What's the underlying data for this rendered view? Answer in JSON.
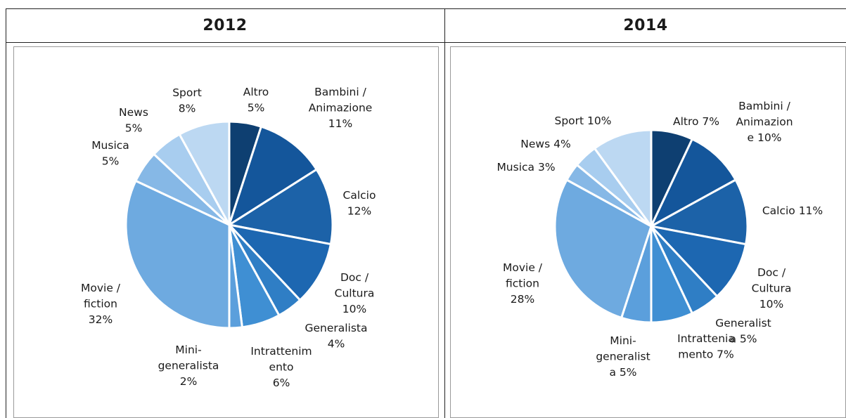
{
  "panels": [
    {
      "title": "2012"
    },
    {
      "title": "2014"
    }
  ],
  "chart_data": [
    {
      "type": "pie",
      "title": "2012",
      "colors": [
        "#0e3f71",
        "#14569b",
        "#1c62a8",
        "#1d67b1",
        "#2f7ec5",
        "#3f8fd3",
        "#5b9fdc",
        "#6eaae0",
        "#86b8e6",
        "#a8cdef",
        "#bcd8f2",
        "#cfe3f6"
      ],
      "slices": [
        {
          "label": "Altro",
          "value": 5,
          "label_lines": [
            "Altro",
            "5%"
          ]
        },
        {
          "label": "Bambini / Animazione",
          "value": 11,
          "label_lines": [
            "Bambini /",
            "Animazione",
            "11%"
          ]
        },
        {
          "label": "Calcio",
          "value": 12,
          "label_lines": [
            "Calcio",
            "12%"
          ]
        },
        {
          "label": "Doc / Cultura",
          "value": 10,
          "label_lines": [
            "Doc /",
            "Cultura",
            "10%"
          ]
        },
        {
          "label": "Generalista",
          "value": 4,
          "label_lines": [
            "Generalista",
            "4%"
          ]
        },
        {
          "label": "Intrattenimento",
          "value": 6,
          "label_lines": [
            "Intrattenim",
            "ento",
            "6%"
          ]
        },
        {
          "label": "Mini-generalista",
          "value": 2,
          "label_lines": [
            "Mini-",
            "generalista",
            "2%"
          ]
        },
        {
          "label": "Movie / fiction",
          "value": 32,
          "label_lines": [
            "Movie /",
            "fiction",
            "32%"
          ]
        },
        {
          "label": "Musica",
          "value": 5,
          "label_lines": [
            "Musica",
            "5%"
          ]
        },
        {
          "label": "News",
          "value": 5,
          "label_lines": [
            "News",
            "5%"
          ]
        },
        {
          "label": "Sport",
          "value": 8,
          "label_lines": [
            "Sport",
            "8%"
          ]
        }
      ]
    },
    {
      "type": "pie",
      "title": "2014",
      "colors": [
        "#0e3f71",
        "#14569b",
        "#1c62a8",
        "#1d67b1",
        "#2f7ec5",
        "#3f8fd3",
        "#5b9fdc",
        "#6eaae0",
        "#86b8e6",
        "#a8cdef",
        "#bcd8f2",
        "#cfe3f6"
      ],
      "slices": [
        {
          "label": "Altro",
          "value": 7,
          "label_lines": [
            "Altro 7%"
          ]
        },
        {
          "label": "Bambini / Animazione",
          "value": 10,
          "label_lines": [
            "Bambini /",
            "Animazion",
            "e 10%"
          ]
        },
        {
          "label": "Calcio",
          "value": 11,
          "label_lines": [
            "Calcio 11%"
          ]
        },
        {
          "label": "Doc / Cultura",
          "value": 10,
          "label_lines": [
            "Doc /",
            "Cultura",
            "10%"
          ]
        },
        {
          "label": "Generalista",
          "value": 5,
          "label_lines": [
            "Generalist",
            "a 5%"
          ]
        },
        {
          "label": "Intrattenimento",
          "value": 7,
          "label_lines": [
            "Intrattenia",
            "mento 7%"
          ]
        },
        {
          "label": "Mini-generalista",
          "value": 5,
          "label_lines": [
            "Mini-",
            "generalist",
            "a 5%"
          ]
        },
        {
          "label": "Movie / fiction",
          "value": 28,
          "label_lines": [
            "Movie /",
            "fiction",
            "28%"
          ]
        },
        {
          "label": "Musica",
          "value": 3,
          "label_lines": [
            "Musica 3%"
          ]
        },
        {
          "label": "News",
          "value": 4,
          "label_lines": [
            "News 4%"
          ]
        },
        {
          "label": "Sport",
          "value": 10,
          "label_lines": [
            "Sport 10%"
          ]
        }
      ]
    }
  ]
}
